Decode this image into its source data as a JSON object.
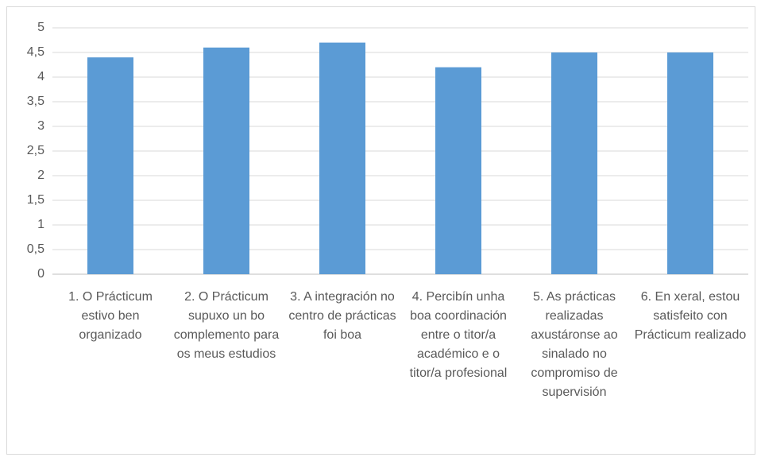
{
  "chart_data": {
    "type": "bar",
    "categories": [
      "1. O Prácticum estivo ben organizado",
      "2. O Prácticum supuxo un bo complemento para os meus estudios",
      "3. A integración no centro de prácticas foi boa",
      "4. Percibín unha boa coordinación entre o titor/a académico e o titor/a profesional",
      "5. As prácticas realizadas axustáronse ao sinalado no compromiso de supervisión",
      "6. En xeral, estou satisfeito con Prácticum realizado"
    ],
    "values": [
      4.4,
      4.6,
      4.7,
      4.2,
      4.5,
      4.5
    ],
    "color": "#5b9bd5",
    "ylim": [
      0,
      5
    ],
    "yticks": [
      0,
      {
        "value": 0.5,
        "label": "0,5"
      },
      1,
      {
        "value": 1.5,
        "label": "1,5"
      },
      2,
      {
        "value": 2.5,
        "label": "2,5"
      },
      3,
      {
        "value": 3.5,
        "label": "3,5"
      },
      4,
      {
        "value": 4.5,
        "label": "4,5"
      },
      5
    ],
    "grid": true
  }
}
